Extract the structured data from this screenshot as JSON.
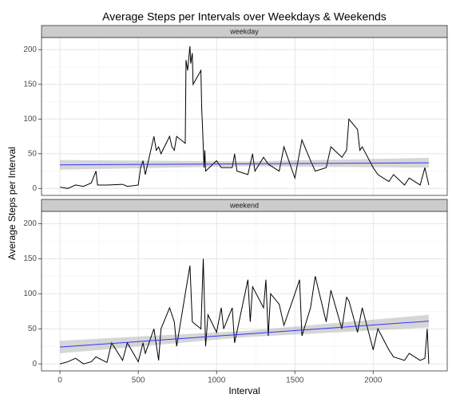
{
  "chart_data": {
    "type": "line",
    "title": "Average Steps per Intervals over Weekdays & Weekends",
    "x_label": "Interval",
    "y_label": "Average Steps per Interval",
    "xlim": [
      -117.75,
      2472.75
    ],
    "ylim": [
      -10,
      217.5
    ],
    "xticks": [
      0,
      500,
      1000,
      1500,
      2000
    ],
    "yticks": [
      0,
      50,
      100,
      150,
      200
    ],
    "grid": true,
    "color": "#000000",
    "trend_color": "#3333ff",
    "band_color": "#999999",
    "panels": [
      {
        "label": "weekday",
        "x": [
          0,
          50,
          100,
          150,
          200,
          230,
          240,
          300,
          400,
          430,
          500,
          515,
          530,
          545,
          600,
          615,
          630,
          645,
          700,
          715,
          730,
          745,
          800,
          805,
          815,
          830,
          835,
          845,
          850,
          900,
          905,
          910,
          915,
          920,
          925,
          930,
          1000,
          1030,
          1100,
          1115,
          1130,
          1200,
          1230,
          1245,
          1300,
          1330,
          1400,
          1430,
          1500,
          1545,
          1600,
          1630,
          1700,
          1730,
          1800,
          1830,
          1845,
          1900,
          1915,
          1930,
          2000,
          2030,
          2100,
          2130,
          2200,
          2230,
          2300,
          2330,
          2355
        ],
        "values": [
          2,
          0,
          5,
          3,
          8,
          25,
          5,
          5,
          6,
          3,
          5,
          30,
          40,
          20,
          75,
          55,
          60,
          50,
          75,
          60,
          55,
          75,
          65,
          185,
          170,
          205,
          180,
          195,
          150,
          170,
          115,
          90,
          60,
          30,
          55,
          25,
          40,
          30,
          30,
          50,
          25,
          20,
          50,
          25,
          45,
          35,
          25,
          60,
          15,
          70,
          40,
          25,
          30,
          60,
          45,
          55,
          100,
          85,
          55,
          60,
          30,
          20,
          10,
          20,
          5,
          15,
          5,
          30,
          5
        ],
        "trend": {
          "x": [
            0,
            1180,
            2355
          ],
          "values": [
            34,
            35.5,
            37
          ],
          "lower": [
            27,
            32,
            30
          ],
          "upper": [
            41,
            39,
            44
          ]
        }
      },
      {
        "label": "weekend",
        "x": [
          0,
          50,
          100,
          150,
          200,
          230,
          300,
          330,
          400,
          430,
          500,
          530,
          545,
          600,
          630,
          645,
          700,
          730,
          745,
          800,
          830,
          845,
          900,
          915,
          930,
          945,
          1000,
          1030,
          1045,
          1100,
          1115,
          1200,
          1215,
          1230,
          1300,
          1315,
          1330,
          1345,
          1400,
          1430,
          1500,
          1530,
          1545,
          1600,
          1630,
          1700,
          1730,
          1800,
          1830,
          1845,
          1900,
          1930,
          2000,
          2030,
          2100,
          2130,
          2200,
          2230,
          2300,
          2330,
          2345,
          2355
        ],
        "values": [
          0,
          3,
          8,
          0,
          3,
          10,
          2,
          30,
          5,
          30,
          3,
          30,
          15,
          50,
          5,
          50,
          80,
          60,
          25,
          100,
          140,
          60,
          50,
          150,
          25,
          70,
          45,
          80,
          50,
          80,
          30,
          120,
          60,
          110,
          80,
          120,
          40,
          100,
          85,
          55,
          100,
          120,
          40,
          80,
          125,
          60,
          105,
          50,
          95,
          90,
          45,
          80,
          20,
          50,
          20,
          10,
          5,
          15,
          5,
          8,
          50,
          0
        ],
        "trend": {
          "x": [
            0,
            1180,
            2355
          ],
          "values": [
            24,
            42.5,
            61
          ],
          "lower": [
            15,
            38,
            52
          ],
          "upper": [
            33,
            47,
            70
          ]
        }
      }
    ]
  }
}
